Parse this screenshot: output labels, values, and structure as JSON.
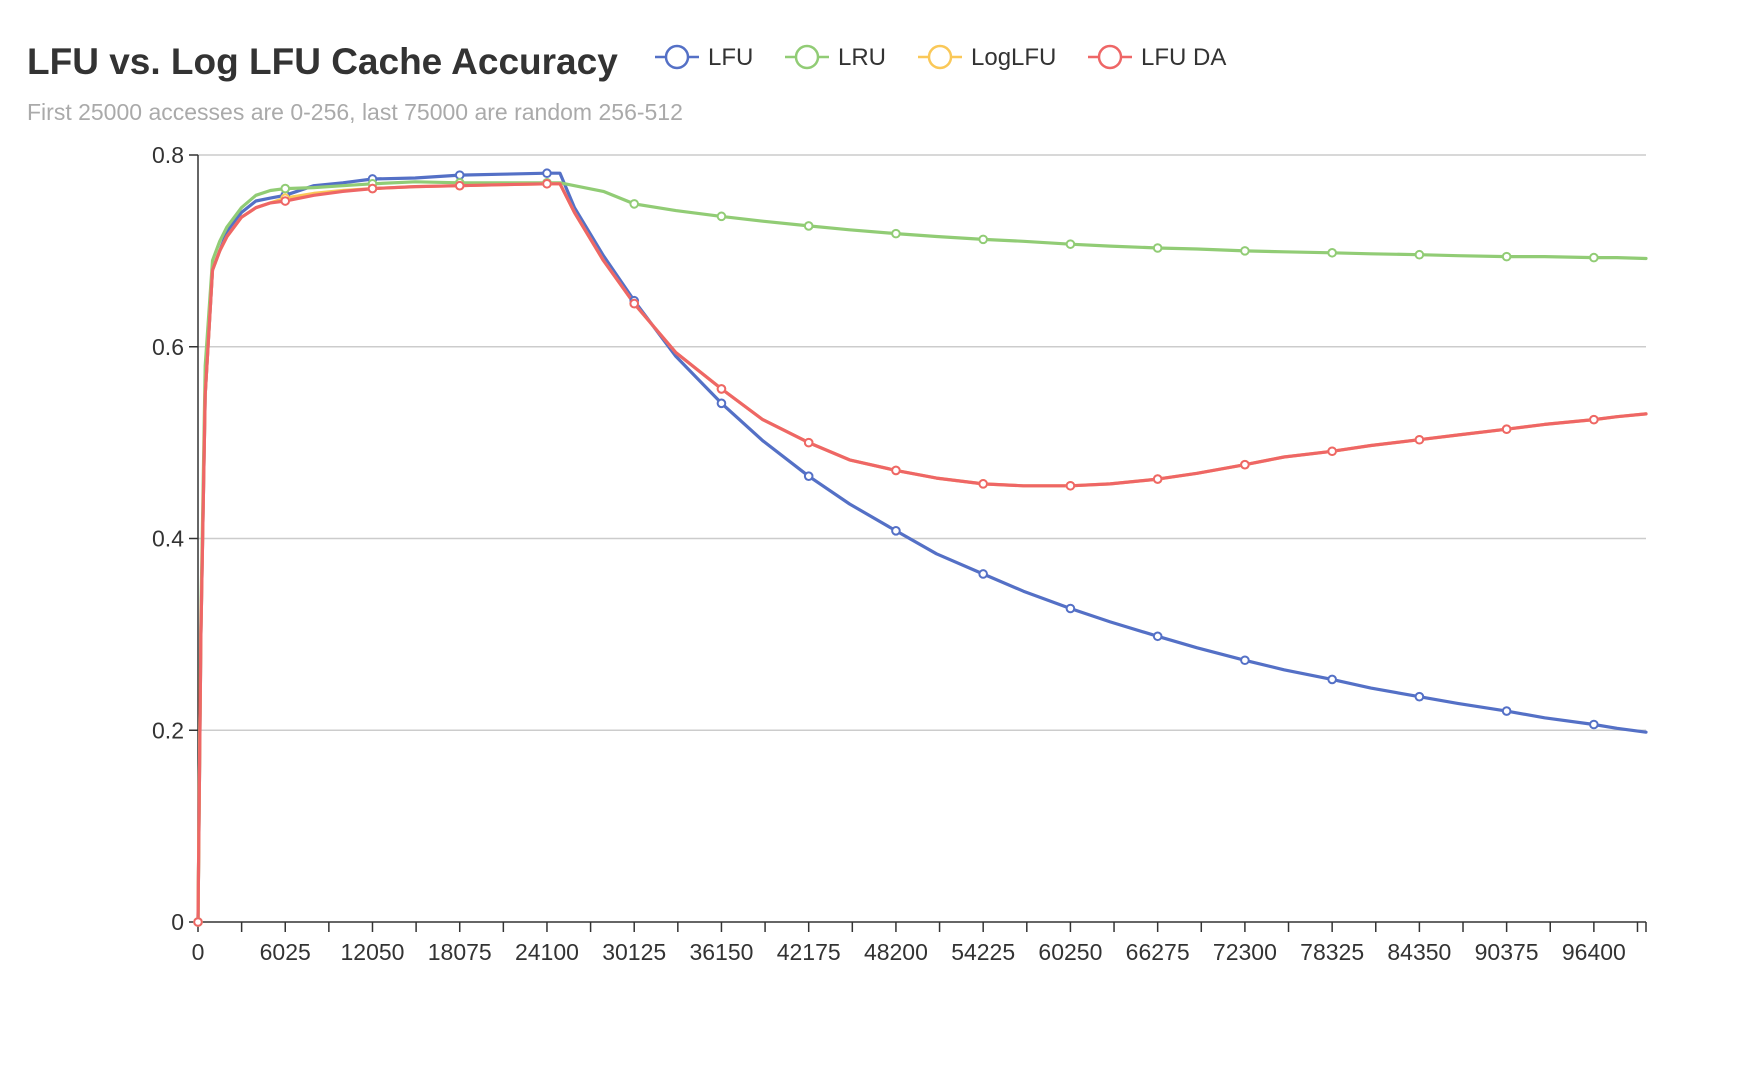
{
  "chart_data": {
    "type": "line",
    "title": "LFU vs. Log LFU Cache Accuracy",
    "subtitle": "First 25000 accesses are 0-256, last 75000 are random 256-512",
    "xlabel": "",
    "ylabel": "",
    "xlim": [
      0,
      100000
    ],
    "ylim": [
      0,
      0.8
    ],
    "x_ticks": [
      0,
      6025,
      12050,
      18075,
      24100,
      30125,
      36150,
      42175,
      48200,
      54225,
      60250,
      66275,
      72300,
      78325,
      84350,
      90375,
      96400
    ],
    "x_tick_labels": [
      "0",
      "6025",
      "12050",
      "18075",
      "24100",
      "30125",
      "36150",
      "42175",
      "48200",
      "54225",
      "60250",
      "66275",
      "72300",
      "78325",
      "84350",
      "90375",
      "96400"
    ],
    "y_ticks": [
      0,
      0.2,
      0.4,
      0.6,
      0.8
    ],
    "y_tick_labels": [
      "0",
      "0.2",
      "0.4",
      "0.6",
      "0.8"
    ],
    "grid": true,
    "legend_position": "top",
    "series": [
      {
        "name": "LFU",
        "color": "#5470c6",
        "x": [
          0,
          200,
          500,
          1000,
          1500,
          2000,
          3000,
          4000,
          5000,
          6025,
          8000,
          10000,
          12050,
          15000,
          18075,
          21000,
          24100,
          25000,
          26000,
          28000,
          30125,
          33000,
          36150,
          39000,
          42175,
          45000,
          48200,
          51000,
          54225,
          57000,
          60250,
          63000,
          66275,
          69000,
          72300,
          75000,
          78325,
          81000,
          84350,
          87000,
          90375,
          93000,
          96400,
          98000,
          100000
        ],
        "y": [
          0.0,
          0.3,
          0.55,
          0.68,
          0.7,
          0.72,
          0.74,
          0.752,
          0.755,
          0.758,
          0.768,
          0.771,
          0.775,
          0.776,
          0.779,
          0.78,
          0.781,
          0.781,
          0.745,
          0.695,
          0.648,
          0.59,
          0.541,
          0.502,
          0.465,
          0.436,
          0.408,
          0.384,
          0.363,
          0.345,
          0.327,
          0.313,
          0.298,
          0.286,
          0.273,
          0.263,
          0.253,
          0.244,
          0.235,
          0.228,
          0.22,
          0.213,
          0.206,
          0.202,
          0.198
        ]
      },
      {
        "name": "LRU",
        "color": "#91cc75",
        "x": [
          0,
          200,
          500,
          1000,
          1500,
          2000,
          3000,
          4000,
          5000,
          6025,
          8000,
          10000,
          12050,
          15000,
          18075,
          21000,
          24100,
          25000,
          26000,
          28000,
          30125,
          33000,
          36150,
          39000,
          42175,
          45000,
          48200,
          51000,
          54225,
          57000,
          60250,
          63000,
          66275,
          69000,
          72300,
          75000,
          78325,
          81000,
          84350,
          87000,
          90375,
          93000,
          96400,
          98000,
          100000
        ],
        "y": [
          0.0,
          0.32,
          0.58,
          0.69,
          0.71,
          0.725,
          0.745,
          0.758,
          0.763,
          0.765,
          0.766,
          0.768,
          0.77,
          0.772,
          0.771,
          0.771,
          0.771,
          0.771,
          0.768,
          0.762,
          0.749,
          0.742,
          0.736,
          0.731,
          0.726,
          0.722,
          0.718,
          0.715,
          0.712,
          0.71,
          0.707,
          0.705,
          0.703,
          0.702,
          0.7,
          0.699,
          0.698,
          0.697,
          0.696,
          0.695,
          0.694,
          0.694,
          0.693,
          0.693,
          0.692
        ]
      },
      {
        "name": "LogLFU",
        "color": "#fac858",
        "x": [
          0,
          200,
          500,
          1000,
          1500,
          2000,
          3000,
          4000,
          5000,
          6025,
          8000,
          10000,
          12050,
          15000,
          18075,
          21000,
          24100,
          25000,
          26000,
          28000,
          30125,
          33000,
          36150,
          39000,
          42175,
          45000,
          48200,
          51000,
          54225,
          57000,
          60250,
          63000,
          66275,
          69000,
          72300,
          75000,
          78325,
          81000,
          84350,
          87000,
          90375,
          93000,
          96400,
          98000,
          100000
        ],
        "y": [
          0.0,
          0.3,
          0.55,
          0.68,
          0.7,
          0.715,
          0.735,
          0.745,
          0.75,
          0.755,
          0.76,
          0.763,
          0.765,
          0.767,
          0.768,
          0.769,
          0.77,
          0.77,
          0.74,
          0.69,
          0.645,
          0.594,
          0.556,
          0.524,
          0.5,
          0.482,
          0.471,
          0.463,
          0.457,
          0.455,
          0.455,
          0.457,
          0.462,
          0.468,
          0.477,
          0.485,
          0.491,
          0.497,
          0.503,
          0.508,
          0.514,
          0.519,
          0.524,
          0.527,
          0.53
        ]
      },
      {
        "name": "LFU DA",
        "color": "#ee6666",
        "x": [
          0,
          200,
          500,
          1000,
          1500,
          2000,
          3000,
          4000,
          5000,
          6025,
          8000,
          10000,
          12050,
          15000,
          18075,
          21000,
          24100,
          25000,
          26000,
          28000,
          30125,
          33000,
          36150,
          39000,
          42175,
          45000,
          48200,
          51000,
          54225,
          57000,
          60250,
          63000,
          66275,
          69000,
          72300,
          75000,
          78325,
          81000,
          84350,
          87000,
          90375,
          93000,
          96400,
          98000,
          100000
        ],
        "y": [
          0.0,
          0.3,
          0.55,
          0.68,
          0.7,
          0.715,
          0.735,
          0.745,
          0.75,
          0.752,
          0.758,
          0.762,
          0.765,
          0.767,
          0.768,
          0.769,
          0.77,
          0.77,
          0.74,
          0.69,
          0.645,
          0.594,
          0.556,
          0.524,
          0.5,
          0.482,
          0.471,
          0.463,
          0.457,
          0.455,
          0.455,
          0.457,
          0.462,
          0.468,
          0.477,
          0.485,
          0.491,
          0.497,
          0.503,
          0.508,
          0.514,
          0.519,
          0.524,
          0.527,
          0.53
        ]
      }
    ]
  }
}
